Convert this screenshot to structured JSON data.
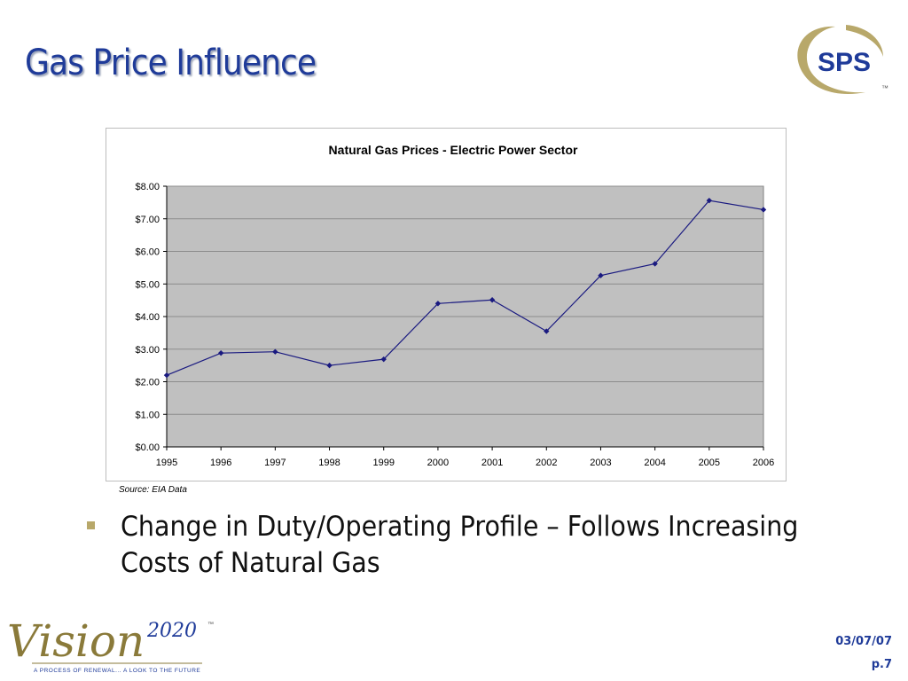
{
  "slide": {
    "title": "Gas Price Influence",
    "bullet": "Change in Duty/Operating Profile – Follows Increasing Costs of Natural Gas",
    "source": "Source: EIA Data",
    "date": "03/07/07",
    "page": "p.7"
  },
  "logos": {
    "sps": {
      "text": "SPS",
      "tm": "™"
    },
    "vision": {
      "word": "Vision",
      "year": "2020",
      "tm": "™",
      "tagline": "A PROCESS OF RENEWAL... A LOOK TO THE FUTURE"
    }
  },
  "colors": {
    "title": "#1f3b99",
    "line": "#1a1a80",
    "plot_bg": "#c0c0c0",
    "gold": "#b8a86a",
    "sps_blue": "#1f3b99"
  },
  "chart_data": {
    "type": "line",
    "title": "Natural Gas Prices - Electric Power Sector",
    "x": [
      "1995",
      "1996",
      "1997",
      "1998",
      "1999",
      "2000",
      "2001",
      "2002",
      "2003",
      "2004",
      "2005",
      "2006"
    ],
    "series": [
      {
        "values": [
          2.2,
          2.88,
          2.92,
          2.5,
          2.69,
          4.4,
          4.51,
          3.55,
          5.26,
          5.62,
          7.56,
          7.28
        ]
      }
    ],
    "ylim": [
      0,
      8
    ],
    "yticks": [
      "$0.00",
      "$1.00",
      "$2.00",
      "$3.00",
      "$4.00",
      "$5.00",
      "$6.00",
      "$7.00",
      "$8.00"
    ],
    "grid": true,
    "legend": "none"
  }
}
